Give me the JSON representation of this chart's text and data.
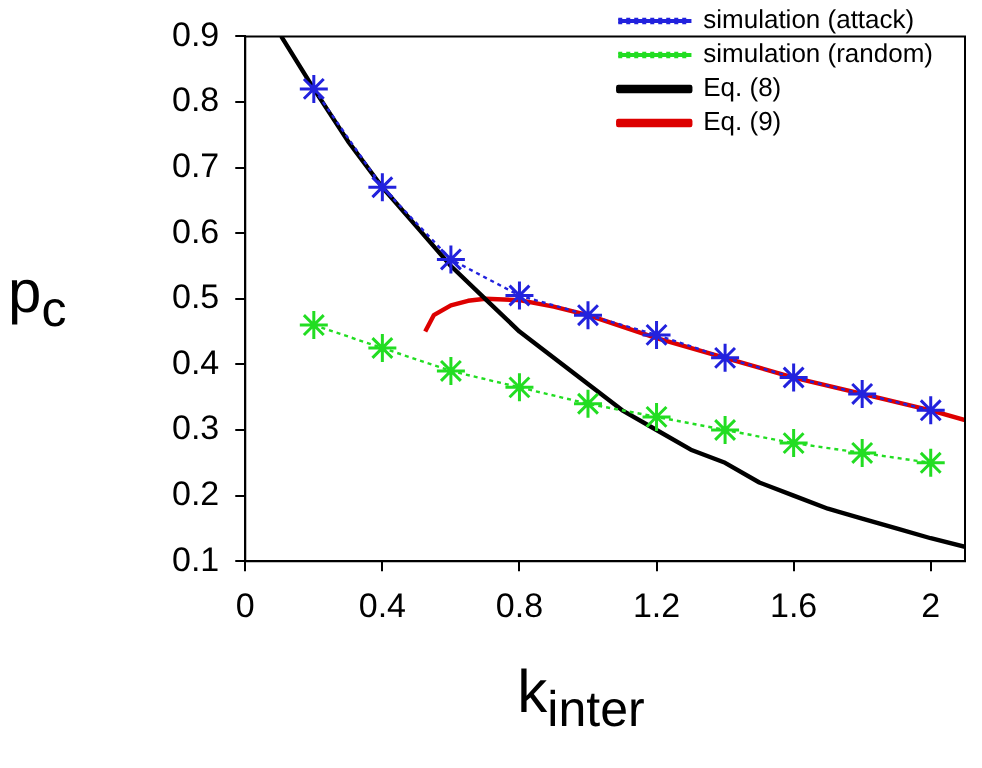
{
  "chart_data": {
    "type": "line",
    "xlabel": "k$_{inter}$",
    "ylabel": "p$_{c}$",
    "xlim": [
      0,
      2.1
    ],
    "xticks": [
      0,
      0.4,
      0.8,
      1.2,
      1.6,
      2
    ],
    "ylim": [
      0.1,
      0.9
    ],
    "yticks": [
      0.1,
      0.2,
      0.3,
      0.4,
      0.5,
      0.6,
      0.7,
      0.8,
      0.9
    ],
    "grid": false,
    "legend": "top right",
    "series": [
      {
        "name": "simulation (attack)",
        "color": "#2222dd",
        "marker": "cross",
        "line_style": "dotted",
        "x": [
          0.2,
          0.4,
          0.6,
          0.8,
          1.0,
          1.2,
          1.4,
          1.6,
          1.8,
          2.0
        ],
        "values": [
          0.82,
          0.67,
          0.56,
          0.505,
          0.475,
          0.445,
          0.41,
          0.38,
          0.355,
          0.33
        ]
      },
      {
        "name": "simulation (random)",
        "color": "#22dd22",
        "marker": "cross",
        "line_style": "dotted",
        "x": [
          0.2,
          0.4,
          0.6,
          0.8,
          1.0,
          1.2,
          1.4,
          1.6,
          1.8,
          2.0
        ],
        "values": [
          0.46,
          0.425,
          0.39,
          0.365,
          0.34,
          0.32,
          0.3,
          0.28,
          0.265,
          0.25
        ]
      },
      {
        "name": "Eq. (8)",
        "color": "#000000",
        "marker": "none",
        "line_style": "solid",
        "x": [
          0.105,
          0.2,
          0.3,
          0.4,
          0.5,
          0.6,
          0.7,
          0.8,
          0.9,
          1.0,
          1.1,
          1.2,
          1.3,
          1.4,
          1.5,
          1.6,
          1.7,
          1.8,
          1.9,
          2.0,
          2.1
        ],
        "values": [
          0.9,
          0.82,
          0.74,
          0.67,
          0.61,
          0.55,
          0.5,
          0.45,
          0.41,
          0.37,
          0.33,
          0.3,
          0.27,
          0.25,
          0.22,
          0.2,
          0.18,
          0.165,
          0.15,
          0.135,
          0.122
        ]
      },
      {
        "name": "Eq. (9)",
        "color": "#dd0000",
        "marker": "none",
        "line_style": "solid",
        "x": [
          0.525,
          0.55,
          0.6,
          0.65,
          0.7,
          0.8,
          0.9,
          1.0,
          1.2,
          1.4,
          1.6,
          1.8,
          2.0,
          2.1
        ],
        "values": [
          0.45,
          0.475,
          0.49,
          0.497,
          0.5,
          0.498,
          0.488,
          0.475,
          0.44,
          0.41,
          0.38,
          0.355,
          0.33,
          0.315
        ]
      }
    ]
  }
}
